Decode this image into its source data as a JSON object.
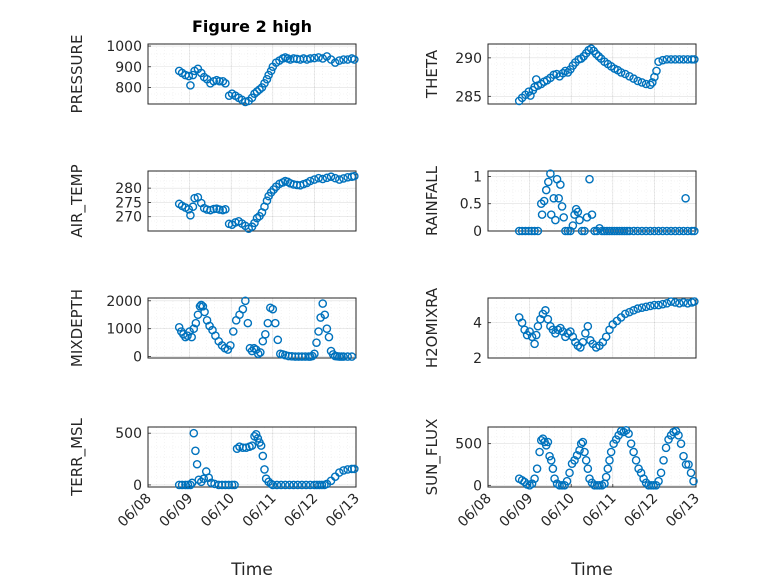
{
  "colors": {
    "marker": "#0072BD",
    "axes": "#262626"
  },
  "chart_data": [
    {
      "type": "scatter",
      "title": "Figure 2 high",
      "ylabel": "PRESSURE",
      "xlabel": "",
      "xlim": [
        0,
        5
      ],
      "ylim": [
        720,
        1010
      ],
      "yticks": [
        800,
        900,
        1000
      ],
      "ytick_labels": [
        "800",
        "900",
        "1000"
      ],
      "xticks": [],
      "xtick_labels": [],
      "grid": true,
      "x": [
        0.75,
        0.82,
        0.9,
        0.98,
        1.02,
        1.08,
        1.12,
        1.2,
        1.28,
        1.35,
        1.42,
        1.5,
        1.58,
        1.65,
        1.72,
        1.8,
        1.86,
        1.95,
        2.02,
        2.1,
        2.18,
        2.26,
        2.34,
        2.42,
        2.5,
        2.56,
        2.62,
        2.68,
        2.74,
        2.8,
        2.86,
        2.9,
        2.96,
        3.0,
        3.08,
        3.16,
        3.24,
        3.3,
        3.36,
        3.42,
        3.5,
        3.58,
        3.66,
        3.74,
        3.82,
        3.9,
        4.0,
        4.1,
        4.2,
        4.3,
        4.4,
        4.5,
        4.6,
        4.7,
        4.8,
        4.9,
        4.96
      ],
      "y": [
        880,
        870,
        860,
        855,
        810,
        860,
        880,
        890,
        870,
        850,
        840,
        820,
        830,
        835,
        830,
        830,
        820,
        760,
        770,
        760,
        750,
        740,
        730,
        735,
        750,
        770,
        780,
        790,
        800,
        820,
        840,
        860,
        880,
        900,
        920,
        930,
        940,
        945,
        940,
        935,
        940,
        938,
        935,
        940,
        935,
        940,
        942,
        945,
        940,
        950,
        935,
        920,
        930,
        935,
        935,
        940,
        935
      ]
    },
    {
      "type": "scatter",
      "title": "",
      "ylabel": "THETA",
      "xlabel": "",
      "xlim": [
        0,
        5
      ],
      "ylim": [
        284,
        291.8
      ],
      "yticks": [
        285,
        290
      ],
      "ytick_labels": [
        "285",
        "290"
      ],
      "xticks": [],
      "xtick_labels": [],
      "grid": true,
      "x": [
        0.75,
        0.82,
        0.9,
        0.98,
        1.02,
        1.08,
        1.12,
        1.16,
        1.2,
        1.28,
        1.35,
        1.42,
        1.5,
        1.58,
        1.65,
        1.72,
        1.8,
        1.86,
        1.92,
        1.98,
        2.04,
        2.1,
        2.18,
        2.24,
        2.3,
        2.36,
        2.42,
        2.48,
        2.54,
        2.6,
        2.66,
        2.72,
        2.8,
        2.88,
        2.96,
        3.04,
        3.12,
        3.2,
        3.3,
        3.4,
        3.5,
        3.6,
        3.7,
        3.8,
        3.9,
        3.95,
        4.0,
        4.05,
        4.1,
        4.2,
        4.3,
        4.4,
        4.5,
        4.6,
        4.7,
        4.8,
        4.9,
        4.96
      ],
      "y": [
        284.4,
        284.8,
        285.2,
        285.6,
        285.1,
        285.8,
        286.2,
        287.2,
        286.4,
        286.6,
        286.9,
        287.1,
        287.4,
        287.8,
        287.9,
        287.6,
        288.0,
        288.3,
        288.1,
        288.5,
        289.0,
        289.4,
        289.8,
        289.9,
        290.2,
        290.6,
        291.0,
        291.2,
        290.9,
        290.5,
        290.2,
        289.9,
        289.5,
        289.2,
        288.9,
        288.6,
        288.4,
        288.1,
        287.9,
        287.6,
        287.3,
        287.0,
        286.8,
        286.6,
        286.5,
        286.8,
        287.5,
        288.3,
        289.5,
        289.7,
        289.8,
        289.8,
        289.8,
        289.8,
        289.8,
        289.8,
        289.8,
        289.8
      ]
    },
    {
      "type": "scatter",
      "title": "",
      "ylabel": "AIR_TEMP",
      "xlabel": "",
      "xlim": [
        0,
        5
      ],
      "ylim": [
        265,
        286
      ],
      "yticks": [
        270,
        275,
        280
      ],
      "ytick_labels": [
        "270",
        "275",
        "280"
      ],
      "xticks": [],
      "xtick_labels": [],
      "grid": true,
      "x": [
        0.75,
        0.82,
        0.9,
        0.98,
        1.02,
        1.08,
        1.12,
        1.2,
        1.28,
        1.35,
        1.42,
        1.5,
        1.58,
        1.65,
        1.72,
        1.8,
        1.86,
        1.95,
        2.02,
        2.1,
        2.18,
        2.26,
        2.34,
        2.42,
        2.5,
        2.56,
        2.62,
        2.68,
        2.74,
        2.8,
        2.86,
        2.9,
        2.96,
        3.02,
        3.08,
        3.16,
        3.24,
        3.3,
        3.36,
        3.42,
        3.5,
        3.58,
        3.66,
        3.74,
        3.82,
        3.9,
        4.0,
        4.1,
        4.2,
        4.3,
        4.4,
        4.5,
        4.6,
        4.7,
        4.8,
        4.9,
        4.96
      ],
      "y": [
        274.5,
        273.8,
        273.2,
        272.6,
        270.5,
        273.5,
        276.5,
        276.8,
        274.8,
        273.0,
        272.5,
        272.3,
        272.7,
        272.8,
        272.5,
        272.3,
        272.6,
        267.5,
        267.2,
        268.0,
        268.4,
        267.6,
        266.8,
        265.8,
        266.5,
        267.8,
        269.5,
        270.2,
        271.5,
        273.5,
        275.6,
        277.2,
        278.5,
        279.5,
        280.5,
        281.5,
        282.0,
        282.5,
        282.2,
        281.7,
        281.3,
        281.1,
        281.0,
        281.4,
        281.8,
        282.5,
        283.0,
        283.5,
        283.2,
        283.6,
        284.0,
        283.5,
        283.0,
        283.4,
        283.8,
        284.0,
        284.2
      ]
    },
    {
      "type": "scatter",
      "title": "",
      "ylabel": "RAINFALL",
      "xlabel": "",
      "xlim": [
        0,
        5
      ],
      "ylim": [
        0,
        1.1
      ],
      "yticks": [
        0,
        0.5,
        1
      ],
      "ytick_labels": [
        "0",
        "0.5",
        "1"
      ],
      "xticks": [],
      "xtick_labels": [],
      "grid": true,
      "x": [
        0.75,
        0.82,
        0.9,
        0.98,
        1.05,
        1.12,
        1.2,
        1.28,
        1.3,
        1.35,
        1.4,
        1.45,
        1.5,
        1.52,
        1.58,
        1.62,
        1.66,
        1.7,
        1.74,
        1.78,
        1.82,
        1.86,
        1.92,
        1.98,
        2.04,
        2.08,
        2.12,
        2.16,
        2.2,
        2.26,
        2.32,
        2.38,
        2.44,
        2.5,
        2.56,
        2.62,
        2.68,
        2.74,
        2.8,
        2.86,
        2.92,
        2.98,
        3.04,
        3.1,
        3.16,
        3.22,
        3.28,
        3.34,
        3.4,
        3.5,
        3.6,
        3.7,
        3.8,
        3.9,
        4.0,
        4.1,
        4.2,
        4.3,
        4.4,
        4.5,
        4.6,
        4.7,
        4.75,
        4.8,
        4.9,
        4.96
      ],
      "y": [
        0,
        0,
        0,
        0,
        0,
        0,
        0,
        0.5,
        0.3,
        0.55,
        0.75,
        0.9,
        1.05,
        0.3,
        0.6,
        0.2,
        0.95,
        0.6,
        0.85,
        0.45,
        0.25,
        0,
        0,
        0,
        0.1,
        0.3,
        0.4,
        0.35,
        0.2,
        0,
        0,
        0.25,
        0.95,
        0.3,
        0,
        0,
        0.05,
        0,
        0,
        0,
        0,
        0,
        0,
        0,
        0,
        0,
        0,
        0,
        0,
        0,
        0,
        0,
        0,
        0,
        0,
        0,
        0,
        0,
        0,
        0,
        0,
        0,
        0.6,
        0,
        0,
        0
      ]
    },
    {
      "type": "scatter",
      "title": "",
      "ylabel": "MIXDEPTH",
      "xlabel": "",
      "xlim": [
        0,
        5
      ],
      "ylim": [
        -50,
        2100
      ],
      "yticks": [
        0,
        1000,
        2000
      ],
      "ytick_labels": [
        "0",
        "1000",
        "2000"
      ],
      "xticks": [],
      "xtick_labels": [],
      "grid": true,
      "x": [
        0.75,
        0.8,
        0.85,
        0.9,
        0.95,
        1.0,
        1.05,
        1.1,
        1.15,
        1.2,
        1.25,
        1.28,
        1.32,
        1.36,
        1.42,
        1.48,
        1.55,
        1.62,
        1.7,
        1.78,
        1.85,
        1.92,
        1.98,
        2.05,
        2.12,
        2.2,
        2.28,
        2.34,
        2.4,
        2.45,
        2.5,
        2.55,
        2.6,
        2.65,
        2.7,
        2.76,
        2.82,
        2.88,
        2.94,
        3.0,
        3.06,
        3.12,
        3.18,
        3.24,
        3.3,
        3.38,
        3.46,
        3.54,
        3.62,
        3.7,
        3.78,
        3.86,
        3.9,
        3.95,
        4.0,
        4.05,
        4.1,
        4.15,
        4.2,
        4.25,
        4.3,
        4.35,
        4.4,
        4.45,
        4.5,
        4.55,
        4.6,
        4.65,
        4.7,
        4.8,
        4.9
      ],
      "y": [
        1050,
        900,
        800,
        700,
        750,
        900,
        700,
        1000,
        1200,
        1500,
        1800,
        1850,
        1800,
        1600,
        1300,
        1100,
        950,
        750,
        550,
        400,
        300,
        250,
        400,
        900,
        1300,
        1500,
        1700,
        2000,
        1200,
        300,
        200,
        300,
        250,
        100,
        150,
        550,
        800,
        1200,
        1750,
        1700,
        1200,
        600,
        100,
        80,
        50,
        20,
        10,
        0,
        0,
        0,
        0,
        0,
        0,
        20,
        100,
        500,
        900,
        1400,
        1900,
        1500,
        1000,
        700,
        200,
        80,
        20,
        10,
        0,
        0,
        0,
        0,
        0
      ]
    },
    {
      "type": "scatter",
      "title": "",
      "ylabel": "H2OMIXRA",
      "xlabel": "",
      "xlim": [
        0,
        5
      ],
      "ylim": [
        2,
        5.4
      ],
      "yticks": [
        2,
        4
      ],
      "ytick_labels": [
        "2",
        "4"
      ],
      "xticks": [],
      "xtick_labels": [],
      "grid": true,
      "x": [
        0.75,
        0.82,
        0.88,
        0.94,
        1.0,
        1.06,
        1.12,
        1.16,
        1.2,
        1.26,
        1.32,
        1.38,
        1.44,
        1.5,
        1.56,
        1.62,
        1.68,
        1.74,
        1.8,
        1.86,
        1.92,
        1.98,
        2.04,
        2.1,
        2.16,
        2.22,
        2.28,
        2.34,
        2.4,
        2.46,
        2.52,
        2.6,
        2.68,
        2.76,
        2.84,
        2.92,
        3.0,
        3.1,
        3.2,
        3.3,
        3.4,
        3.5,
        3.6,
        3.7,
        3.8,
        3.9,
        4.0,
        4.1,
        4.2,
        4.3,
        4.4,
        4.5,
        4.6,
        4.7,
        4.8,
        4.9,
        4.96
      ],
      "y": [
        4.3,
        4.0,
        3.6,
        3.3,
        3.5,
        3.2,
        2.8,
        3.3,
        3.8,
        4.2,
        4.5,
        4.7,
        4.2,
        3.8,
        3.6,
        3.4,
        3.6,
        3.7,
        3.5,
        3.2,
        3.4,
        3.5,
        3.2,
        2.9,
        2.7,
        2.6,
        2.9,
        3.4,
        3.8,
        3.0,
        2.8,
        2.6,
        2.7,
        2.9,
        3.2,
        3.6,
        3.9,
        4.1,
        4.3,
        4.5,
        4.6,
        4.7,
        4.8,
        4.85,
        4.9,
        4.95,
        5.0,
        5.0,
        5.05,
        5.1,
        5.2,
        5.15,
        5.1,
        5.15,
        5.1,
        5.15,
        5.2
      ]
    },
    {
      "type": "scatter",
      "title": "",
      "ylabel": "TERR_MSL",
      "xlabel": "Time",
      "xlim": [
        0,
        5
      ],
      "ylim": [
        -20,
        560
      ],
      "yticks": [
        0,
        500
      ],
      "ytick_labels": [
        "0",
        "500"
      ],
      "xticks": [
        0,
        1,
        2,
        3,
        4,
        5
      ],
      "xtick_labels": [
        "06/08",
        "06/09",
        "06/10",
        "06/11",
        "06/12",
        "06/13"
      ],
      "grid": true,
      "x": [
        0.75,
        0.82,
        0.9,
        0.96,
        1.02,
        1.06,
        1.1,
        1.14,
        1.18,
        1.22,
        1.28,
        1.34,
        1.4,
        1.46,
        1.52,
        1.6,
        1.7,
        1.78,
        1.86,
        1.94,
        2.02,
        2.08,
        2.14,
        2.2,
        2.28,
        2.36,
        2.44,
        2.5,
        2.56,
        2.6,
        2.64,
        2.68,
        2.72,
        2.76,
        2.8,
        2.84,
        2.9,
        2.96,
        3.0,
        3.1,
        3.2,
        3.3,
        3.4,
        3.5,
        3.6,
        3.7,
        3.8,
        3.9,
        4.0,
        4.06,
        4.12,
        4.18,
        4.24,
        4.3,
        4.4,
        4.5,
        4.6,
        4.7,
        4.8,
        4.9,
        4.96
      ],
      "y": [
        0,
        0,
        0,
        0,
        0,
        20,
        500,
        330,
        200,
        50,
        30,
        60,
        130,
        70,
        20,
        10,
        0,
        0,
        0,
        0,
        0,
        0,
        350,
        370,
        360,
        360,
        370,
        380,
        470,
        490,
        450,
        410,
        380,
        280,
        150,
        60,
        30,
        10,
        0,
        0,
        0,
        0,
        0,
        0,
        0,
        0,
        0,
        0,
        0,
        0,
        0,
        0,
        0,
        10,
        40,
        80,
        120,
        140,
        150,
        155,
        155
      ]
    },
    {
      "type": "scatter",
      "title": "",
      "ylabel": "SUN_FLUX",
      "xlabel": "Time",
      "xlim": [
        0,
        5
      ],
      "ylim": [
        -20,
        700
      ],
      "yticks": [
        0,
        500
      ],
      "ytick_labels": [
        "0",
        "500"
      ],
      "xticks": [
        0,
        1,
        2,
        3,
        4,
        5
      ],
      "xtick_labels": [
        "06/08",
        "06/09",
        "06/10",
        "06/11",
        "06/12",
        "06/13"
      ],
      "grid": true,
      "x": [
        0.75,
        0.82,
        0.88,
        0.94,
        1.0,
        1.06,
        1.12,
        1.18,
        1.24,
        1.28,
        1.32,
        1.36,
        1.4,
        1.44,
        1.48,
        1.52,
        1.56,
        1.6,
        1.66,
        1.72,
        1.78,
        1.84,
        1.9,
        1.96,
        2.02,
        2.08,
        2.14,
        2.2,
        2.24,
        2.28,
        2.32,
        2.36,
        2.4,
        2.44,
        2.5,
        2.56,
        2.62,
        2.68,
        2.74,
        2.8,
        2.84,
        2.88,
        2.92,
        2.96,
        3.02,
        3.08,
        3.14,
        3.2,
        3.26,
        3.32,
        3.38,
        3.44,
        3.5,
        3.56,
        3.62,
        3.68,
        3.74,
        3.8,
        3.86,
        3.92,
        3.98,
        4.04,
        4.1,
        4.16,
        4.22,
        4.28,
        4.34,
        4.4,
        4.46,
        4.52,
        4.58,
        4.64,
        4.7,
        4.76,
        4.82,
        4.88,
        4.94
      ],
      "y": [
        80,
        60,
        40,
        10,
        0,
        20,
        80,
        200,
        400,
        540,
        560,
        520,
        480,
        520,
        350,
        300,
        200,
        80,
        20,
        0,
        0,
        0,
        50,
        150,
        260,
        300,
        360,
        420,
        500,
        520,
        400,
        300,
        200,
        80,
        30,
        0,
        0,
        0,
        0,
        20,
        100,
        200,
        300,
        400,
        500,
        550,
        600,
        650,
        640,
        660,
        620,
        500,
        400,
        300,
        200,
        150,
        80,
        30,
        0,
        0,
        0,
        0,
        50,
        150,
        300,
        450,
        550,
        600,
        640,
        650,
        600,
        500,
        350,
        250,
        250,
        150,
        50
      ]
    }
  ]
}
